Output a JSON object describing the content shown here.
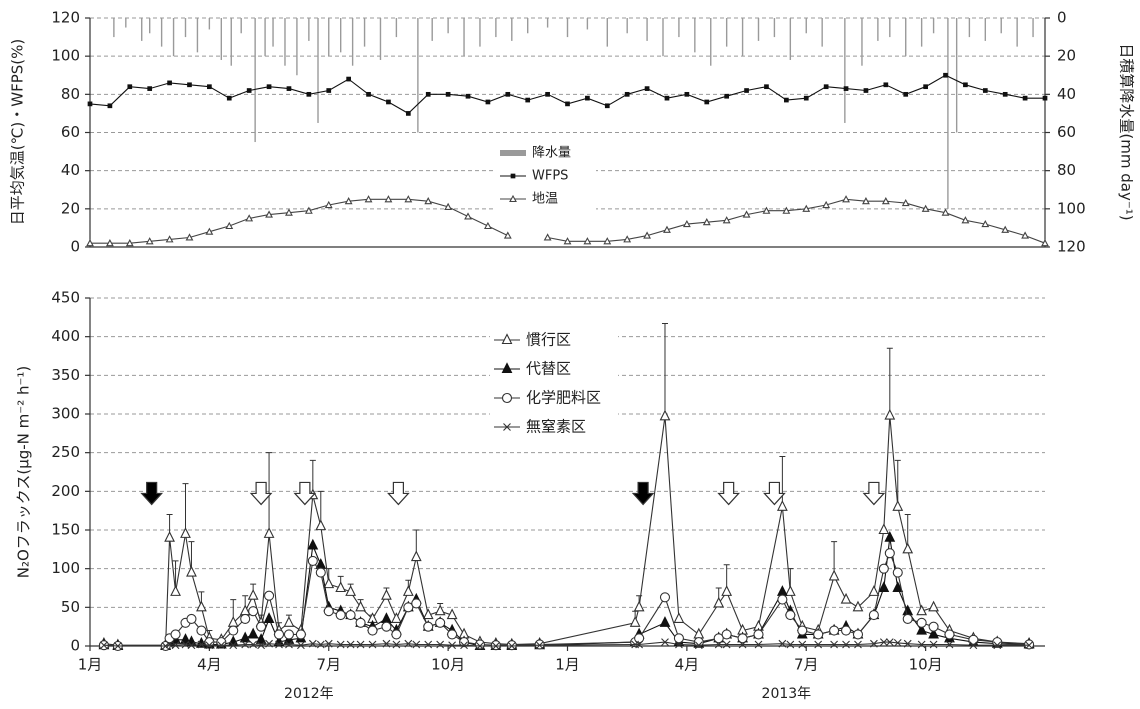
{
  "chart_data": [
    {
      "type": "line",
      "y_label": "日平均気温(℃)・WFPS(%)",
      "y2_label": "日積算降水量(mm day⁻¹)",
      "xlim": [
        0,
        24
      ],
      "ylim": [
        0,
        120
      ],
      "yticks": [
        0,
        20,
        40,
        60,
        80,
        100,
        120
      ],
      "y2lim": [
        0,
        120
      ],
      "y2ticks": [
        0,
        20,
        40,
        60,
        80,
        100,
        120
      ],
      "y2_inverted": true,
      "grid": true,
      "x": [
        0,
        0.5,
        1,
        1.5,
        2,
        2.5,
        3,
        3.5,
        4,
        4.5,
        5,
        5.5,
        6,
        6.5,
        7,
        7.5,
        8,
        8.5,
        9,
        9.5,
        10,
        10.5,
        11,
        11.5,
        12,
        12.5,
        13,
        13.5,
        14,
        14.5,
        15,
        15.5,
        16,
        16.5,
        17,
        17.5,
        18,
        18.5,
        19,
        19.5,
        20,
        20.5,
        21,
        21.5,
        22,
        22.5,
        23,
        23.5,
        24
      ],
      "series": [
        {
          "name": "降水量",
          "type": "bar",
          "axis": "y2",
          "color": "#9a9a9a",
          "x": [
            0.6,
            0.9,
            1.3,
            1.5,
            1.8,
            2.1,
            2.4,
            2.7,
            3.0,
            3.3,
            3.55,
            3.8,
            4.15,
            4.4,
            4.6,
            4.9,
            5.2,
            5.5,
            5.73,
            6.0,
            6.3,
            6.6,
            6.9,
            7.3,
            7.7,
            8.24,
            8.6,
            9.0,
            9.4,
            9.8,
            10.2,
            10.6,
            11.0,
            11.5,
            12.0,
            12.5,
            13.0,
            13.5,
            14.0,
            14.4,
            14.8,
            15.2,
            15.6,
            16.0,
            16.4,
            16.8,
            17.2,
            17.6,
            18.0,
            18.4,
            18.97,
            19.4,
            19.8,
            20.1,
            20.5,
            20.9,
            21.2,
            21.56,
            21.78,
            22.1,
            22.5,
            22.9,
            23.3,
            23.7
          ],
          "values": [
            10,
            5,
            12,
            8,
            15,
            20,
            10,
            18,
            6,
            22,
            25,
            8,
            65,
            20,
            15,
            25,
            30,
            12,
            55,
            20,
            18,
            25,
            15,
            22,
            10,
            60,
            12,
            8,
            20,
            15,
            10,
            12,
            8,
            5,
            10,
            6,
            15,
            8,
            12,
            20,
            10,
            18,
            25,
            15,
            20,
            12,
            10,
            22,
            8,
            15,
            55,
            25,
            12,
            10,
            20,
            15,
            8,
            100,
            60,
            10,
            12,
            8,
            15,
            10
          ]
        },
        {
          "name": "WFPS",
          "marker": "square",
          "color": "#111111",
          "values": [
            75,
            74,
            84,
            83,
            86,
            85,
            84,
            78,
            82,
            84,
            83,
            80,
            82,
            88,
            80,
            76,
            70,
            80,
            80,
            79,
            76,
            80,
            77,
            80,
            75,
            78,
            74,
            80,
            83,
            78,
            80,
            76,
            79,
            82,
            84,
            77,
            78,
            84,
            83,
            82,
            85,
            80,
            84,
            90,
            85,
            82,
            80,
            78,
            78
          ]
        },
        {
          "name": "地温",
          "marker": "triangle",
          "color": "#444444",
          "values": [
            2,
            2,
            2,
            3,
            4,
            5,
            8,
            11,
            15,
            17,
            18,
            19,
            22,
            24,
            25,
            25,
            25,
            24,
            21,
            16,
            11,
            6,
            null,
            5,
            3,
            3,
            3,
            4,
            6,
            9,
            12,
            13,
            14,
            17,
            19,
            19,
            20,
            22,
            25,
            24,
            24,
            23,
            20,
            18,
            14,
            12,
            9,
            6,
            2
          ]
        }
      ]
    },
    {
      "type": "line",
      "y_label": "N₂Oフラックス(μg-N m⁻² h⁻¹)",
      "xlim": [
        0,
        24
      ],
      "xticks": [
        {
          "value": 0,
          "label": "1月"
        },
        {
          "value": 3,
          "label": "4月"
        },
        {
          "value": 6,
          "label": "7月"
        },
        {
          "value": 9,
          "label": "10月"
        },
        {
          "value": 12,
          "label": "1月"
        },
        {
          "value": 15,
          "label": "4月"
        },
        {
          "value": 18,
          "label": "7月"
        },
        {
          "value": 21,
          "label": "10月"
        }
      ],
      "year_labels": [
        "2012年",
        "2013年"
      ],
      "ylim": [
        0,
        450
      ],
      "yticks": [
        0,
        50,
        100,
        150,
        200,
        250,
        300,
        350,
        400,
        450
      ],
      "grid": true,
      "x": [
        0.35,
        0.7,
        1.9,
        2.0,
        2.15,
        2.4,
        2.55,
        2.8,
        3.0,
        3.3,
        3.6,
        3.9,
        4.1,
        4.3,
        4.5,
        4.75,
        5.0,
        5.3,
        5.6,
        5.8,
        6.0,
        6.3,
        6.55,
        6.8,
        7.1,
        7.45,
        7.7,
        8.0,
        8.2,
        8.5,
        8.8,
        9.1,
        9.4,
        9.8,
        10.2,
        10.6,
        11.3,
        13.7,
        13.8,
        14.45,
        14.8,
        15.3,
        15.8,
        16.0,
        16.4,
        16.8,
        17.4,
        17.6,
        17.9,
        18.3,
        18.7,
        19.0,
        19.3,
        19.7,
        19.95,
        20.1,
        20.3,
        20.55,
        20.9,
        21.2,
        21.6,
        22.2,
        22.8,
        23.6
      ],
      "series": [
        {
          "name": "慣行区",
          "marker": "triangle-open",
          "color": "#333333",
          "values": [
            3,
            1,
            1,
            140,
            70,
            145,
            95,
            50,
            10,
            8,
            30,
            45,
            65,
            30,
            145,
            20,
            30,
            20,
            195,
            155,
            80,
            75,
            70,
            50,
            35,
            65,
            35,
            70,
            115,
            40,
            45,
            40,
            15,
            5,
            3,
            2,
            3,
            30,
            50,
            297,
            35,
            15,
            55,
            70,
            20,
            25,
            180,
            70,
            25,
            20,
            90,
            60,
            50,
            70,
            150,
            298,
            180,
            125,
            45,
            50,
            20,
            10,
            5,
            3
          ],
          "errors": [
            null,
            null,
            null,
            30,
            40,
            65,
            40,
            20,
            10,
            null,
            30,
            20,
            15,
            10,
            105,
            10,
            10,
            null,
            45,
            45,
            20,
            15,
            10,
            10,
            5,
            10,
            null,
            15,
            35,
            null,
            10,
            null,
            null,
            null,
            null,
            null,
            null,
            15,
            15,
            120,
            null,
            null,
            20,
            35,
            null,
            null,
            65,
            30,
            null,
            null,
            45,
            null,
            null,
            null,
            null,
            87,
            60,
            45,
            null,
            null,
            null,
            null,
            null,
            null
          ]
        },
        {
          "name": "代替区",
          "marker": "triangle-filled",
          "color": "#111111",
          "values": [
            1,
            0,
            0,
            5,
            8,
            8,
            5,
            3,
            2,
            2,
            5,
            10,
            15,
            8,
            35,
            5,
            8,
            10,
            130,
            105,
            50,
            45,
            40,
            30,
            25,
            35,
            20,
            50,
            60,
            25,
            30,
            20,
            5,
            0,
            0,
            0,
            1,
            5,
            15,
            30,
            5,
            3,
            10,
            15,
            10,
            15,
            70,
            45,
            15,
            15,
            20,
            25,
            15,
            40,
            75,
            140,
            75,
            45,
            20,
            15,
            10,
            5,
            3,
            2
          ]
        },
        {
          "name": "化学肥料区",
          "marker": "circle-open",
          "color": "#333333",
          "values": [
            1,
            0,
            0,
            10,
            15,
            30,
            35,
            20,
            5,
            5,
            20,
            35,
            45,
            25,
            65,
            15,
            15,
            15,
            110,
            95,
            45,
            40,
            40,
            30,
            20,
            25,
            15,
            50,
            55,
            25,
            30,
            15,
            5,
            2,
            1,
            1,
            2,
            5,
            10,
            63,
            10,
            5,
            10,
            15,
            10,
            15,
            60,
            40,
            20,
            15,
            20,
            20,
            15,
            40,
            100,
            120,
            95,
            35,
            30,
            25,
            15,
            8,
            5,
            2
          ]
        },
        {
          "name": "無窒素区",
          "marker": "cross",
          "color": "#333333",
          "values": [
            1,
            0,
            0,
            2,
            1,
            2,
            1,
            2,
            1,
            1,
            1,
            2,
            2,
            1,
            3,
            2,
            2,
            1,
            3,
            2,
            3,
            2,
            2,
            2,
            2,
            3,
            2,
            3,
            2,
            2,
            2,
            1,
            1,
            0,
            0,
            0,
            1,
            2,
            2,
            5,
            2,
            1,
            2,
            2,
            2,
            2,
            3,
            2,
            2,
            2,
            2,
            2,
            2,
            3,
            5,
            5,
            4,
            3,
            2,
            2,
            2,
            1,
            1,
            1
          ]
        }
      ],
      "arrows": [
        {
          "x": 1.55,
          "filled": true
        },
        {
          "x": 4.3,
          "filled": false
        },
        {
          "x": 5.4,
          "filled": false
        },
        {
          "x": 7.75,
          "filled": false
        },
        {
          "x": 13.9,
          "filled": true
        },
        {
          "x": 16.05,
          "filled": false
        },
        {
          "x": 17.2,
          "filled": false
        },
        {
          "x": 19.7,
          "filled": false
        }
      ]
    }
  ]
}
